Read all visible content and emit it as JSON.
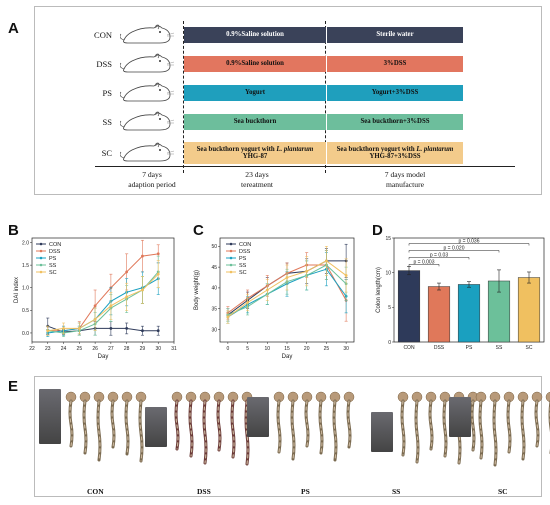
{
  "panels": {
    "a": "A",
    "b": "B",
    "c": "C",
    "d": "D",
    "e": "E"
  },
  "panelA": {
    "groups": [
      {
        "label": "CON",
        "bar1": "0.9%Saline solution",
        "bar2": "Sterile water",
        "fill1": "#3a4259",
        "fill2": "#3a4259",
        "text": "#ffffff"
      },
      {
        "label": "DSS",
        "bar1": "0.9%Saline solution",
        "bar2": "3%DSS",
        "fill1": "#e2765f",
        "fill2": "#e2765f",
        "text": "#111111"
      },
      {
        "label": "PS",
        "bar1": "Yogurt",
        "bar2": "Yogurt+3%DSS",
        "fill1": "#1f9fbd",
        "fill2": "#1f9fbd",
        "text": "#111111"
      },
      {
        "label": "SS",
        "bar1": "Sea buckthorn",
        "bar2": "Sea buckthorn+3%DSS",
        "fill1": "#6dbe9c",
        "fill2": "#6dbe9c",
        "text": "#111111"
      },
      {
        "label": "SC",
        "bar1_line1": "Sea buckthorn yogurt with ",
        "bar1_species": "L. plantarum",
        "bar1_line2": "YHG-87",
        "bar2_line1": "Sea buckthorn yogurt with ",
        "bar2_species": "L. plantarum",
        "bar2_line2": "YHG-87+3%DSS",
        "fill1": "#f3cb8b",
        "fill2": "#f3cb8b",
        "text": "#111111"
      }
    ],
    "timeline": {
      "p1a": "7 days",
      "p1b": "adaption period",
      "p2a": "23 days",
      "p2b": "tereatment",
      "p3a": "7 days model",
      "p3b": "manufacture"
    }
  },
  "colors": {
    "CON": "#2e3a5a",
    "DSS": "#e0785a",
    "PS": "#1aa0c0",
    "SS": "#6cc09a",
    "SC": "#f0c060"
  },
  "chart_data": [
    {
      "type": "line",
      "panel": "B",
      "xlabel": "Day",
      "ylabel": "DAI index",
      "x": [
        23,
        24,
        25,
        26,
        27,
        28,
        29,
        30
      ],
      "xticks": [
        22,
        23,
        24,
        25,
        26,
        27,
        28,
        29,
        30,
        31
      ],
      "xlim": [
        22,
        31
      ],
      "ylim": [
        -0.2,
        2.1
      ],
      "yticks": [
        0.0,
        0.5,
        1.0,
        1.5,
        2.0
      ],
      "ytick_labels": [
        "0.0",
        "0.5",
        "1.0",
        "1.5",
        "2.0"
      ],
      "legend": [
        "CON",
        "DSS",
        "PS",
        "SS",
        "SC"
      ],
      "series": [
        {
          "name": "CON",
          "values": [
            0.15,
            0.02,
            0.05,
            0.1,
            0.1,
            0.1,
            0.05,
            0.05
          ],
          "err": [
            0.18,
            0.05,
            0.1,
            0.15,
            0.15,
            0.12,
            0.1,
            0.1
          ]
        },
        {
          "name": "DSS",
          "values": [
            0.05,
            0.05,
            0.1,
            0.6,
            1.0,
            1.35,
            1.7,
            1.75
          ],
          "err": [
            0.1,
            0.1,
            0.15,
            0.35,
            0.3,
            0.4,
            0.35,
            0.2
          ]
        },
        {
          "name": "PS",
          "values": [
            0.0,
            0.05,
            0.1,
            0.3,
            0.7,
            0.9,
            1.0,
            1.2
          ],
          "err": [
            0.08,
            0.1,
            0.12,
            0.25,
            0.3,
            0.3,
            0.35,
            0.35
          ]
        },
        {
          "name": "SS",
          "values": [
            0.05,
            0.0,
            0.05,
            0.2,
            0.55,
            0.75,
            0.95,
            1.35
          ],
          "err": [
            0.1,
            0.08,
            0.1,
            0.25,
            0.3,
            0.3,
            0.3,
            0.35
          ]
        },
        {
          "name": "SC",
          "values": [
            0.05,
            0.1,
            0.1,
            0.3,
            0.6,
            0.8,
            0.95,
            1.3
          ],
          "err": [
            0.1,
            0.12,
            0.12,
            0.25,
            0.3,
            0.3,
            0.3,
            0.3
          ]
        }
      ]
    },
    {
      "type": "line",
      "panel": "C",
      "xlabel": "Day",
      "ylabel": "Body weight(g)",
      "x": [
        0,
        5,
        10,
        15,
        20,
        25,
        30
      ],
      "xticks": [
        0,
        5,
        10,
        15,
        20,
        25,
        30
      ],
      "xlim": [
        -2,
        32
      ],
      "ylim": [
        27,
        52
      ],
      "yticks": [
        30,
        35,
        40,
        45,
        50
      ],
      "legend": [
        "CON",
        "DSS",
        "PS",
        "SS",
        "SC"
      ],
      "series": [
        {
          "name": "CON",
          "values": [
            33.5,
            37,
            40.5,
            43.5,
            44,
            46.5,
            46.5
          ],
          "err": [
            1.5,
            2,
            2,
            2.5,
            3,
            3,
            4
          ]
        },
        {
          "name": "DSS",
          "values": [
            34,
            37.5,
            40.5,
            43.5,
            45.5,
            45.5,
            37
          ],
          "err": [
            1.5,
            2,
            2.5,
            2.5,
            3,
            3.5,
            5
          ]
        },
        {
          "name": "PS",
          "values": [
            33,
            36,
            38.5,
            41,
            43,
            44.5,
            38
          ],
          "err": [
            1.5,
            2,
            2.5,
            3,
            3.5,
            4,
            4
          ]
        },
        {
          "name": "SS",
          "values": [
            33.5,
            35.5,
            38.5,
            41.5,
            43,
            45.5,
            41
          ],
          "err": [
            1.5,
            2,
            2.5,
            3,
            3.5,
            3.5,
            4
          ]
        },
        {
          "name": "SC",
          "values": [
            33,
            36.5,
            39.5,
            42.5,
            44,
            46.5,
            43
          ],
          "err": [
            1.5,
            2,
            2.5,
            3,
            3.5,
            3.5,
            4
          ]
        }
      ]
    },
    {
      "type": "bar",
      "panel": "D",
      "xlabel": "",
      "ylabel": "Colon length(cm)",
      "categories": [
        "CON",
        "DSS",
        "PS",
        "SS",
        "SC"
      ],
      "values": [
        10.3,
        8.0,
        8.3,
        8.8,
        9.3
      ],
      "err": [
        0.6,
        0.5,
        0.4,
        1.6,
        0.8
      ],
      "ylim": [
        0,
        15
      ],
      "yticks": [
        0,
        5,
        10,
        15
      ],
      "annotations": [
        "p = 0.036",
        "p = 0.020",
        "p = 0.03",
        "p = 0.003"
      ]
    }
  ],
  "panelE": {
    "groups": [
      "CON",
      "DSS",
      "PS",
      "SS",
      "SC"
    ]
  }
}
